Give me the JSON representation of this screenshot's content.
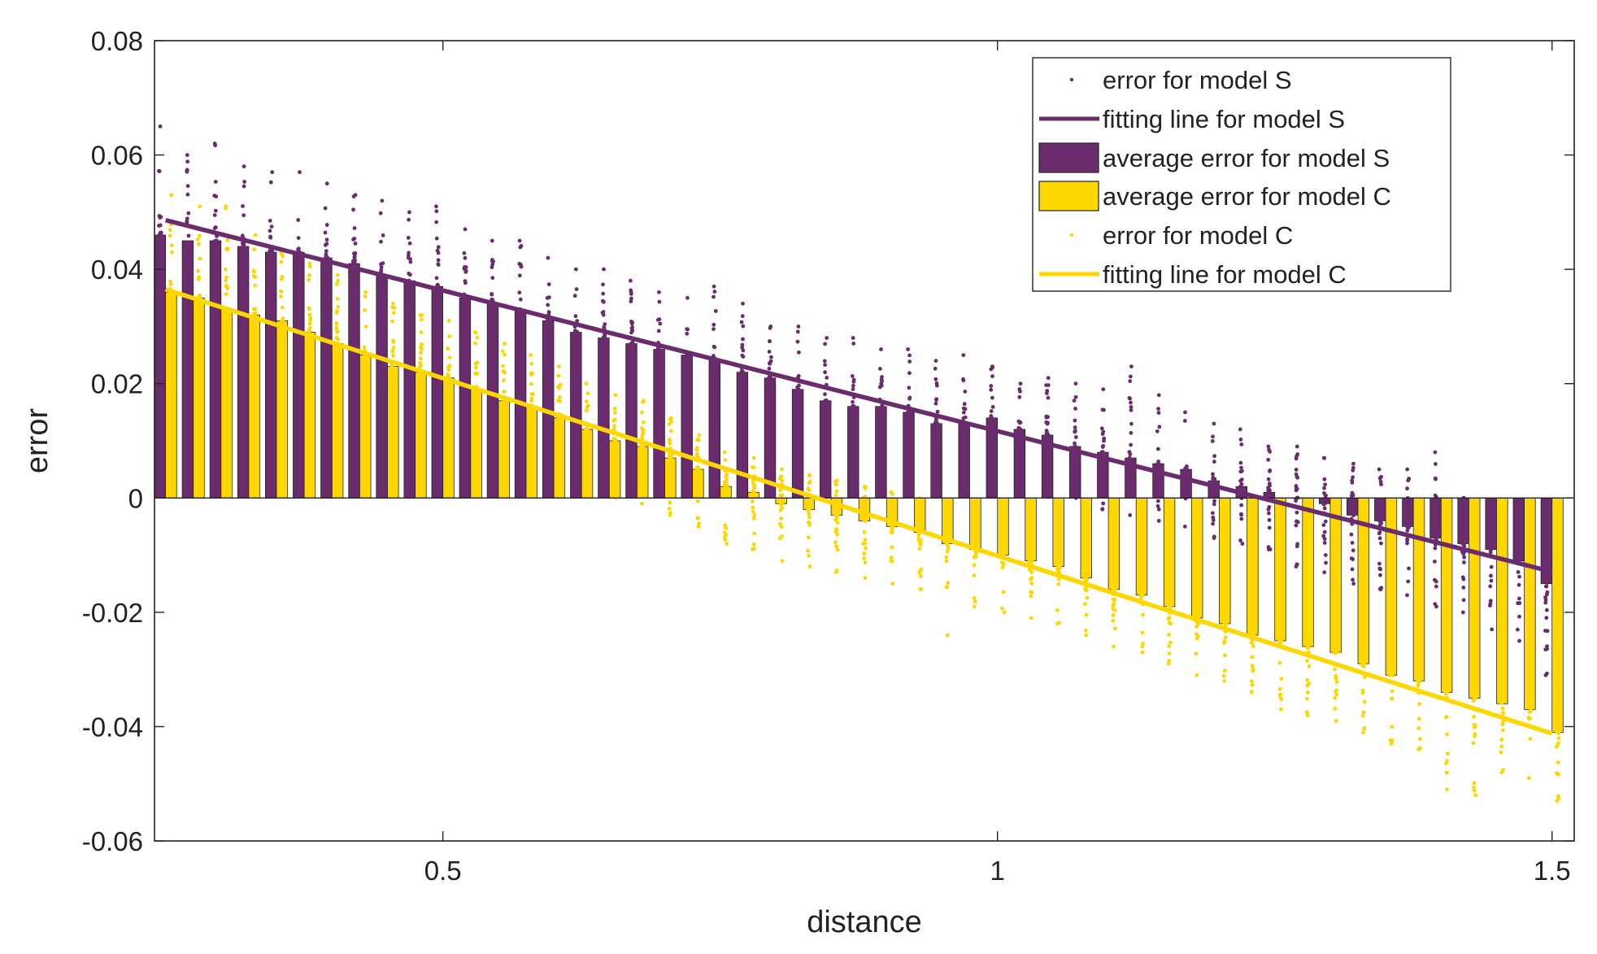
{
  "chart_data": {
    "type": "bar",
    "title": "",
    "xlabel": "distance",
    "ylabel": "error",
    "xlim": [
      0.24,
      1.52
    ],
    "ylim": [
      -0.06,
      0.08
    ],
    "xticks": [
      0.5,
      1,
      1.5
    ],
    "xtick_labels": [
      "0.5",
      "1",
      "1.5"
    ],
    "yticks": [
      -0.06,
      -0.04,
      -0.02,
      0,
      0.02,
      0.04,
      0.06,
      0.08
    ],
    "ytick_labels": [
      "-0.06",
      "-0.04",
      "-0.02",
      "0",
      "0.02",
      "0.04",
      "0.06",
      "0.08"
    ],
    "grid": false,
    "legend_position": "top-right",
    "colors": {
      "model_s": "#6b2c6e",
      "model_c": "#ffd700",
      "axis": "#222222"
    },
    "x": [
      0.25,
      0.275,
      0.3,
      0.325,
      0.35,
      0.375,
      0.4,
      0.425,
      0.45,
      0.475,
      0.5,
      0.525,
      0.55,
      0.575,
      0.6,
      0.625,
      0.65,
      0.675,
      0.7,
      0.725,
      0.75,
      0.775,
      0.8,
      0.825,
      0.85,
      0.875,
      0.9,
      0.925,
      0.95,
      0.975,
      1.0,
      1.025,
      1.05,
      1.075,
      1.1,
      1.125,
      1.15,
      1.175,
      1.2,
      1.225,
      1.25,
      1.275,
      1.3,
      1.325,
      1.35,
      1.375,
      1.4,
      1.425,
      1.45,
      1.475,
      1.5
    ],
    "series": [
      {
        "name": "average error for model S",
        "type": "bar",
        "values": [
          0.046,
          0.045,
          0.045,
          0.044,
          0.043,
          0.043,
          0.042,
          0.041,
          0.039,
          0.038,
          0.037,
          0.035,
          0.034,
          0.033,
          0.031,
          0.029,
          0.028,
          0.027,
          0.026,
          0.025,
          0.024,
          0.022,
          0.021,
          0.019,
          0.017,
          0.016,
          0.016,
          0.015,
          0.013,
          0.013,
          0.014,
          0.012,
          0.011,
          0.009,
          0.008,
          0.007,
          0.006,
          0.005,
          0.003,
          0.002,
          0.001,
          0.0,
          -0.001,
          -0.003,
          -0.004,
          -0.005,
          -0.007,
          -0.008,
          -0.009,
          -0.011,
          -0.015
        ]
      },
      {
        "name": "average error for model C",
        "type": "bar",
        "values": [
          0.036,
          0.035,
          0.033,
          0.032,
          0.031,
          0.029,
          0.027,
          0.025,
          0.023,
          0.022,
          0.021,
          0.019,
          0.017,
          0.016,
          0.014,
          0.012,
          0.01,
          0.009,
          0.007,
          0.005,
          0.002,
          0.001,
          -0.001,
          -0.002,
          -0.003,
          -0.004,
          -0.005,
          -0.006,
          -0.008,
          -0.009,
          -0.01,
          -0.011,
          -0.012,
          -0.014,
          -0.016,
          -0.017,
          -0.019,
          -0.021,
          -0.022,
          -0.024,
          -0.025,
          -0.026,
          -0.027,
          -0.029,
          -0.031,
          -0.032,
          -0.034,
          -0.035,
          -0.036,
          -0.037,
          -0.041
        ]
      },
      {
        "name": "fitting line for model S",
        "type": "line",
        "x": [
          0.25,
          1.5
        ],
        "values": [
          0.0486,
          -0.0129
        ]
      },
      {
        "name": "fitting line for model C",
        "type": "line",
        "x": [
          0.25,
          1.5
        ],
        "values": [
          0.0365,
          -0.0412
        ]
      },
      {
        "name": "error for model S",
        "type": "scatter",
        "spread_above": [
          0.019,
          0.015,
          0.017,
          0.014,
          0.014,
          0.014,
          0.013,
          0.012,
          0.013,
          0.012,
          0.014,
          0.012,
          0.011,
          0.012,
          0.011,
          0.011,
          0.012,
          0.011,
          0.01,
          0.01,
          0.013,
          0.012,
          0.009,
          0.011,
          0.011,
          0.012,
          0.01,
          0.011,
          0.011,
          0.012,
          0.009,
          0.008,
          0.01,
          0.011,
          0.011,
          0.016,
          0.012,
          0.01,
          0.01,
          0.01,
          0.008,
          0.009,
          0.008,
          0.009,
          0.009,
          0.01,
          0.015,
          0.008,
          0.008,
          0.008,
          0.01
        ],
        "spread_below": [
          0.01,
          0.01,
          0.01,
          0.01,
          0.01,
          0.01,
          0.01,
          0.009,
          0.009,
          0.009,
          0.009,
          0.009,
          0.009,
          0.009,
          0.009,
          0.009,
          0.009,
          0.009,
          0.009,
          0.009,
          0.009,
          0.009,
          0.009,
          0.009,
          0.009,
          0.009,
          0.009,
          0.009,
          0.009,
          0.009,
          0.009,
          0.009,
          0.009,
          0.009,
          0.01,
          0.01,
          0.01,
          0.01,
          0.01,
          0.01,
          0.01,
          0.012,
          0.012,
          0.012,
          0.012,
          0.012,
          0.012,
          0.012,
          0.014,
          0.014,
          0.016
        ]
      },
      {
        "name": "error for model C",
        "type": "scatter",
        "spread_above": [
          0.017,
          0.016,
          0.018,
          0.014,
          0.012,
          0.012,
          0.012,
          0.011,
          0.011,
          0.01,
          0.01,
          0.01,
          0.01,
          0.009,
          0.009,
          0.008,
          0.008,
          0.008,
          0.007,
          0.006,
          0.006,
          0.006,
          0.006,
          0.006,
          0.006,
          0.006,
          0.006,
          0.006,
          0.006,
          0.006,
          0.006,
          0.006,
          0.006,
          0.006,
          0.006,
          0.006,
          0.006,
          0.006,
          0.006,
          0.006,
          0.006,
          0.006,
          0.006,
          0.006,
          0.006,
          0.006,
          0.006,
          0.006,
          0.006,
          0.006,
          0.006
        ],
        "spread_below": [
          0.012,
          0.012,
          0.012,
          0.012,
          0.012,
          0.011,
          0.011,
          0.011,
          0.011,
          0.011,
          0.01,
          0.01,
          0.01,
          0.01,
          0.01,
          0.01,
          0.01,
          0.01,
          0.01,
          0.01,
          0.01,
          0.01,
          0.01,
          0.01,
          0.01,
          0.01,
          0.01,
          0.01,
          0.016,
          0.01,
          0.01,
          0.01,
          0.01,
          0.01,
          0.01,
          0.01,
          0.01,
          0.01,
          0.01,
          0.01,
          0.012,
          0.012,
          0.012,
          0.012,
          0.012,
          0.012,
          0.017,
          0.017,
          0.012,
          0.012,
          0.012
        ]
      }
    ]
  },
  "legend": {
    "items": [
      {
        "label": "error for model S",
        "kind": "dot",
        "color": "#6b2c6e"
      },
      {
        "label": "fitting line for model S",
        "kind": "line",
        "color": "#6b2c6e"
      },
      {
        "label": "average error for model S",
        "kind": "bar",
        "color": "#6b2c6e"
      },
      {
        "label": "average error for model C",
        "kind": "bar",
        "color": "#ffd700"
      },
      {
        "label": "error for model C",
        "kind": "dot",
        "color": "#ffd700"
      },
      {
        "label": "fitting line for model C",
        "kind": "line",
        "color": "#ffd700"
      }
    ]
  }
}
